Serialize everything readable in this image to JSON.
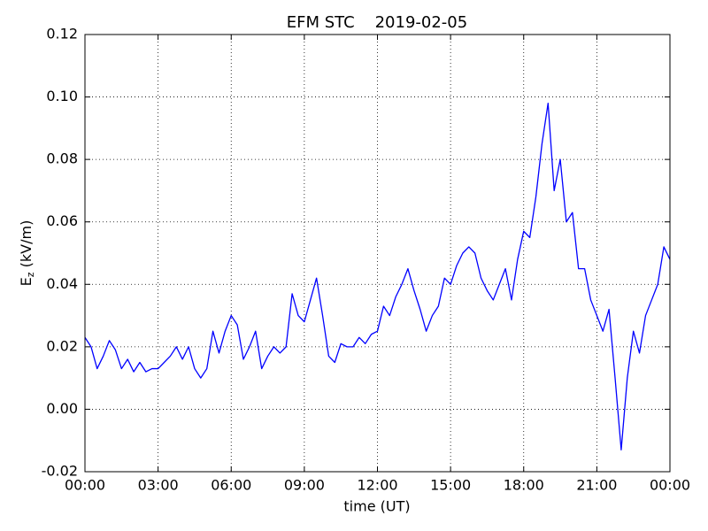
{
  "chart_data": {
    "type": "line",
    "title": "EFM STC    2019-02-05",
    "xlabel": "time (UT)",
    "ylabel": {
      "main": "E",
      "sub": "z",
      "unit": "(kV/m)"
    },
    "x": [
      0,
      0.25,
      0.5,
      0.75,
      1,
      1.25,
      1.5,
      1.75,
      2,
      2.25,
      2.5,
      2.75,
      3,
      3.25,
      3.5,
      3.75,
      4,
      4.25,
      4.5,
      4.75,
      5,
      5.25,
      5.5,
      5.75,
      6,
      6.25,
      6.5,
      6.75,
      7,
      7.25,
      7.5,
      7.75,
      8,
      8.25,
      8.5,
      8.75,
      9,
      9.25,
      9.5,
      9.75,
      10,
      10.25,
      10.5,
      10.75,
      11,
      11.25,
      11.5,
      11.75,
      12,
      12.25,
      12.5,
      12.75,
      13,
      13.25,
      13.5,
      13.75,
      14,
      14.25,
      14.5,
      14.75,
      15,
      15.25,
      15.5,
      15.75,
      16,
      16.25,
      16.5,
      16.75,
      17,
      17.25,
      17.5,
      17.75,
      18,
      18.25,
      18.5,
      18.75,
      19,
      19.25,
      19.5,
      19.75,
      20,
      20.25,
      20.5,
      20.75,
      21,
      21.25,
      21.5,
      21.75,
      22,
      22.25,
      22.5,
      22.75,
      23,
      23.25,
      23.5,
      23.75,
      24
    ],
    "series": [
      {
        "color": "#0000ff",
        "values": [
          0.023,
          0.02,
          0.013,
          0.017,
          0.022,
          0.019,
          0.013,
          0.016,
          0.012,
          0.015,
          0.012,
          0.013,
          0.013,
          0.015,
          0.017,
          0.02,
          0.016,
          0.02,
          0.013,
          0.01,
          0.013,
          0.025,
          0.018,
          0.025,
          0.03,
          0.027,
          0.016,
          0.02,
          0.025,
          0.013,
          0.017,
          0.02,
          0.018,
          0.02,
          0.037,
          0.03,
          0.028,
          0.035,
          0.042,
          0.03,
          0.017,
          0.015,
          0.021,
          0.02,
          0.02,
          0.023,
          0.021,
          0.024,
          0.025,
          0.033,
          0.03,
          0.036,
          0.04,
          0.045,
          0.038,
          0.032,
          0.025,
          0.03,
          0.033,
          0.042,
          0.04,
          0.046,
          0.05,
          0.052,
          0.05,
          0.042,
          0.038,
          0.035,
          0.04,
          0.045,
          0.035,
          0.048,
          0.057,
          0.055,
          0.068,
          0.085,
          0.098,
          0.07,
          0.08,
          0.06,
          0.063,
          0.045,
          0.045,
          0.035,
          0.03,
          0.025,
          0.032,
          0.01,
          -0.013,
          0.01,
          0.025,
          0.018,
          0.03,
          0.035,
          0.04,
          0.052,
          0.048
        ]
      }
    ],
    "xlim": [
      0,
      24
    ],
    "xticks": [
      {
        "value": 0,
        "label": "00:00"
      },
      {
        "value": 3,
        "label": "03:00"
      },
      {
        "value": 6,
        "label": "06:00"
      },
      {
        "value": 9,
        "label": "09:00"
      },
      {
        "value": 12,
        "label": "12:00"
      },
      {
        "value": 15,
        "label": "15:00"
      },
      {
        "value": 18,
        "label": "18:00"
      },
      {
        "value": 21,
        "label": "21:00"
      },
      {
        "value": 24,
        "label": "00:00"
      }
    ],
    "ylim": [
      -0.02,
      0.12
    ],
    "yticks": [
      {
        "value": -0.02,
        "label": "-0.02"
      },
      {
        "value": 0,
        "label": "0.00"
      },
      {
        "value": 0.02,
        "label": "0.02"
      },
      {
        "value": 0.04,
        "label": "0.04"
      },
      {
        "value": 0.06,
        "label": "0.06"
      },
      {
        "value": 0.08,
        "label": "0.08"
      },
      {
        "value": 0.1,
        "label": "0.10"
      },
      {
        "value": 0.12,
        "label": "0.12"
      }
    ],
    "grid": true
  }
}
